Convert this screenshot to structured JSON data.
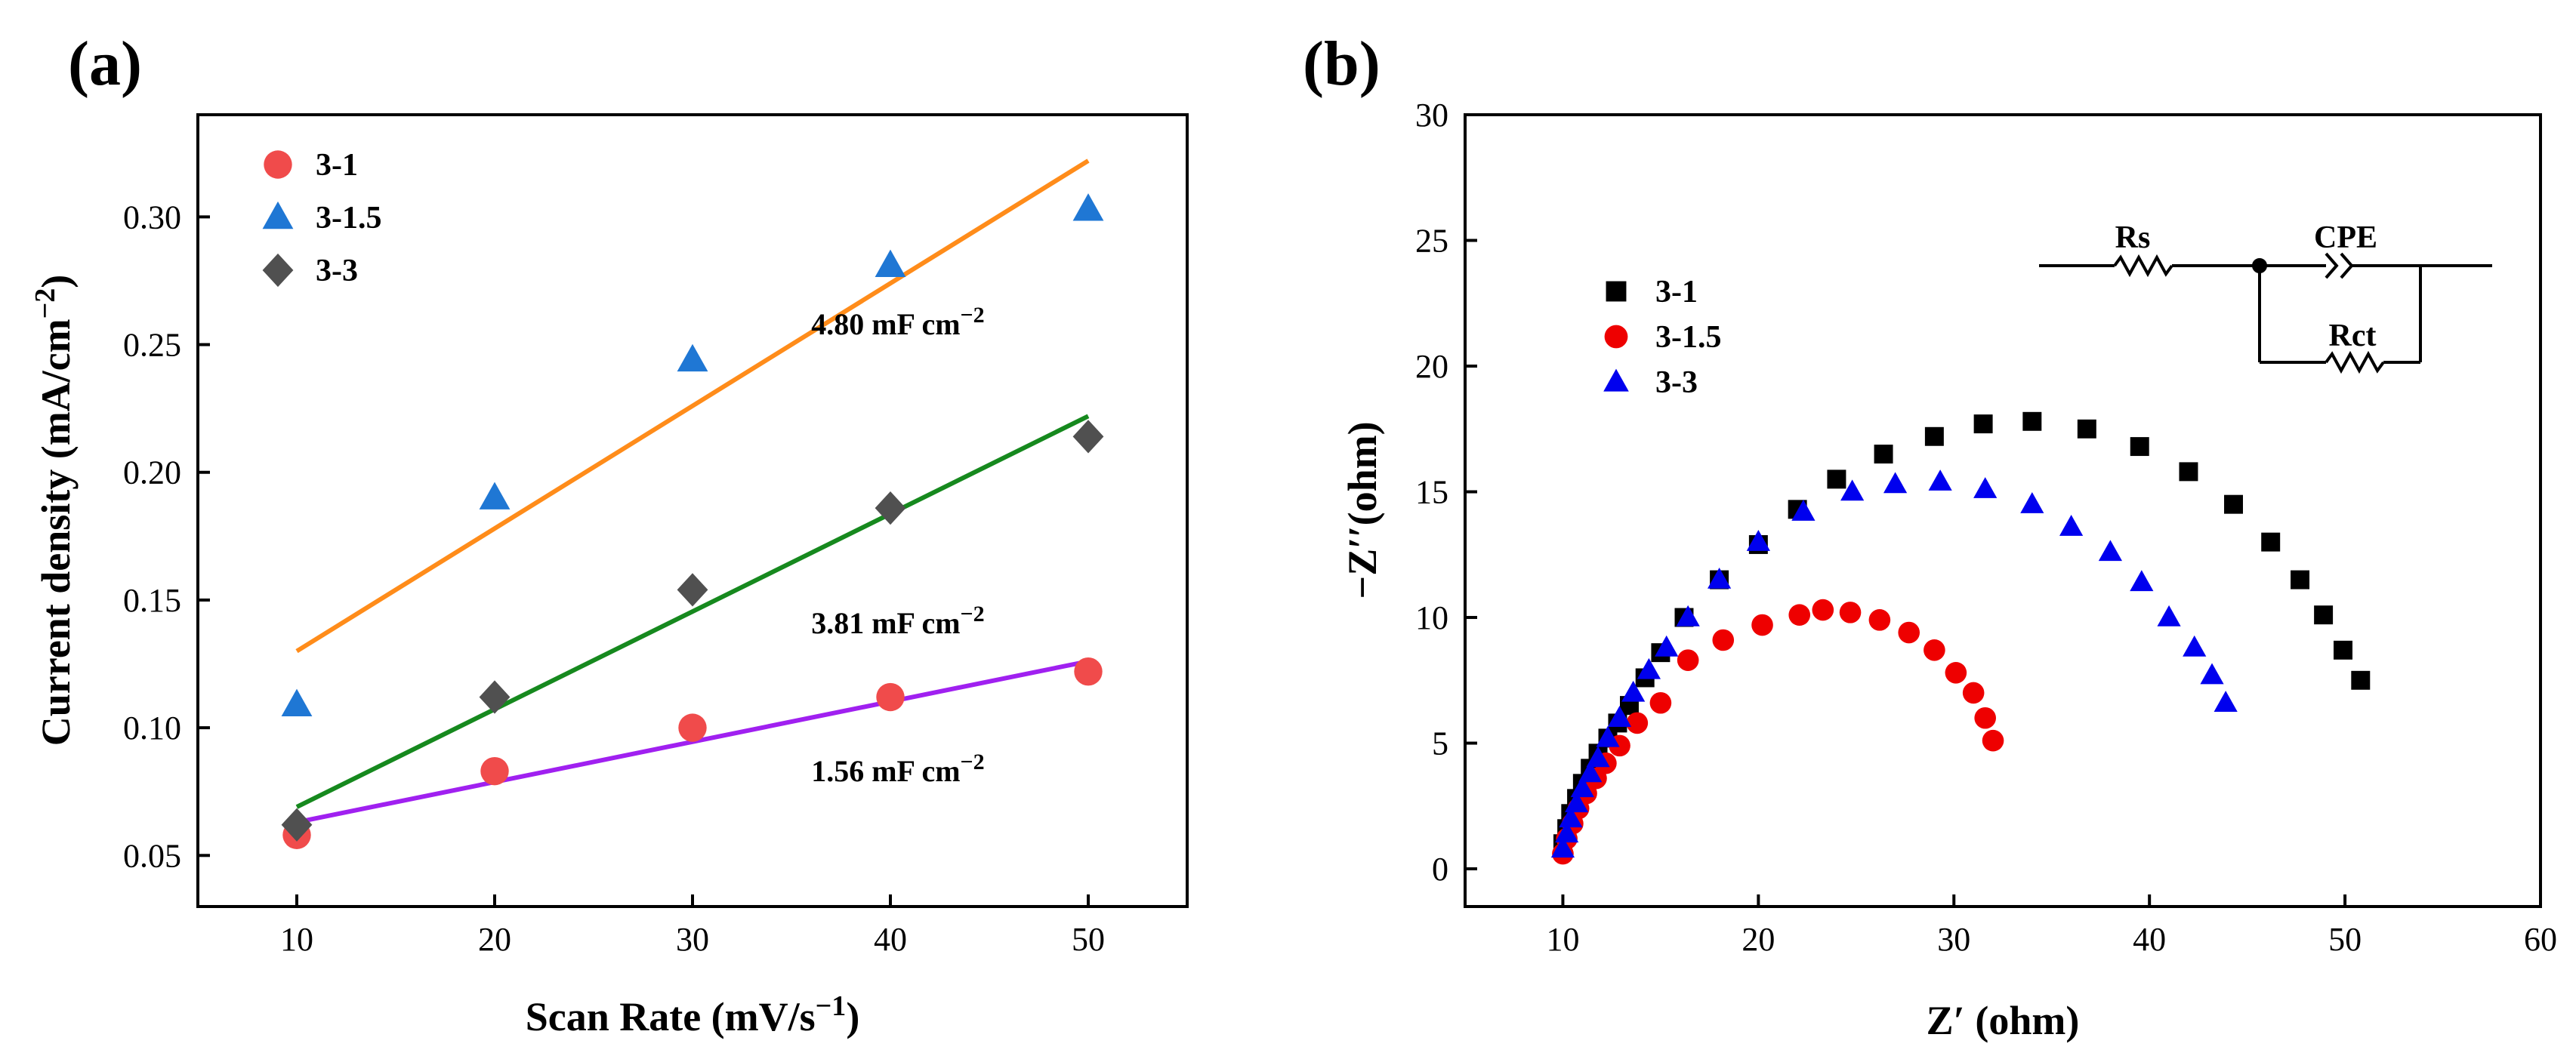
{
  "panel_labels": {
    "a": "(a)",
    "b": "(b)"
  },
  "colors": {
    "red": "#f04b4b",
    "blue": "#1f77d4",
    "gray": "#505050",
    "orange": "#ff8c1a",
    "green": "#16891e",
    "purple": "#a020f0",
    "black": "#000000",
    "pure_red": "#ee0000",
    "pure_blue": "#0000ee"
  },
  "chart_data": [
    {
      "type": "scatter",
      "panel": "(a)",
      "xlabel": "Scan Rate (mV/s",
      "xlabel_sup": "−1",
      "xlabel_end": ")",
      "ylabel": "Current density  (mA/cm",
      "ylabel_sup": "−2",
      "ylabel_end": ")",
      "xlim": [
        5,
        55
      ],
      "ylim": [
        0.03,
        0.34
      ],
      "xticks": [
        10,
        20,
        30,
        40,
        50
      ],
      "yticks": [
        0.05,
        0.1,
        0.15,
        0.2,
        0.25,
        0.3
      ],
      "ytick_labels": [
        "0.05",
        "0.10",
        "0.15",
        "0.20",
        "0.25",
        "0.30"
      ],
      "legend_position": "top-left",
      "series": [
        {
          "name": "3-1",
          "marker": "circle",
          "color": "#f04b4b",
          "x": [
            10,
            20,
            30,
            40,
            50
          ],
          "y": [
            0.058,
            0.083,
            0.1,
            0.112,
            0.122
          ]
        },
        {
          "name": "3-1.5",
          "marker": "triangle",
          "color": "#1f77d4",
          "x": [
            10,
            20,
            30,
            40,
            50
          ],
          "y": [
            0.109,
            0.19,
            0.244,
            0.281,
            0.303
          ]
        },
        {
          "name": "3-3",
          "marker": "diamond",
          "color": "#505050",
          "x": [
            10,
            20,
            30,
            40,
            50
          ],
          "y": [
            0.062,
            0.112,
            0.154,
            0.186,
            0.214
          ]
        }
      ],
      "fits": [
        {
          "label": "4.80 mF cm",
          "sup": "−2",
          "color": "#ff8c1a",
          "x": [
            10,
            50
          ],
          "y": [
            0.13,
            0.322
          ],
          "label_at": [
            36,
            0.254
          ]
        },
        {
          "label": "3.81 mF cm",
          "sup": "−2",
          "color": "#16891e",
          "x": [
            10,
            50
          ],
          "y": [
            0.069,
            0.222
          ],
          "label_at": [
            36,
            0.137
          ]
        },
        {
          "label": "1.56 mF cm",
          "sup": "−2",
          "color": "#a020f0",
          "x": [
            10,
            50
          ],
          "y": [
            0.063,
            0.126
          ],
          "label_at": [
            36,
            0.079
          ]
        }
      ]
    },
    {
      "type": "scatter",
      "panel": "(b)",
      "xlabel": "Z′ (ohm)",
      "ylabel": "−Z′′(ohm)",
      "xlim": [
        5,
        60
      ],
      "ylim": [
        -1.5,
        30
      ],
      "xticks": [
        10,
        20,
        30,
        40,
        50,
        60
      ],
      "yticks": [
        0,
        5,
        10,
        15,
        20,
        25,
        30
      ],
      "legend_position": "top-left",
      "series": [
        {
          "name": "3-1",
          "marker": "square",
          "color": "#000000",
          "x": [
            10.0,
            10.2,
            10.4,
            10.7,
            11.0,
            11.4,
            11.8,
            12.3,
            12.8,
            13.4,
            14.2,
            15.0,
            16.2,
            18.0,
            20.0,
            22.0,
            24.0,
            26.4,
            29.0,
            31.5,
            34.0,
            36.8,
            39.5,
            42.0,
            44.3,
            46.2,
            47.7,
            48.9,
            49.9,
            50.8
          ],
          "y": [
            1.0,
            1.6,
            2.2,
            2.8,
            3.4,
            4.0,
            4.6,
            5.2,
            5.8,
            6.5,
            7.6,
            8.6,
            10.0,
            11.5,
            12.9,
            14.3,
            15.5,
            16.5,
            17.2,
            17.7,
            17.8,
            17.5,
            16.8,
            15.8,
            14.5,
            13.0,
            11.5,
            10.1,
            8.7,
            7.5
          ]
        },
        {
          "name": "3-1.5",
          "marker": "circle",
          "color": "#ee0000",
          "x": [
            10.0,
            10.2,
            10.5,
            10.8,
            11.2,
            11.7,
            12.2,
            12.9,
            13.8,
            15.0,
            16.4,
            18.2,
            20.2,
            22.1,
            23.3,
            24.7,
            26.2,
            27.7,
            29.0,
            30.1,
            31.0,
            31.6,
            32.0
          ],
          "y": [
            0.6,
            1.2,
            1.8,
            2.4,
            3.0,
            3.6,
            4.2,
            4.9,
            5.8,
            6.6,
            8.3,
            9.1,
            9.7,
            10.1,
            10.3,
            10.2,
            9.9,
            9.4,
            8.7,
            7.8,
            7.0,
            6.0,
            5.1
          ]
        },
        {
          "name": "3-3",
          "marker": "triangle",
          "color": "#0000ee",
          "x": [
            10.0,
            10.2,
            10.4,
            10.7,
            11.0,
            11.4,
            11.8,
            12.3,
            12.9,
            13.6,
            14.4,
            15.3,
            16.4,
            18.0,
            20.0,
            22.3,
            24.8,
            27.0,
            29.3,
            31.6,
            34.0,
            36.0,
            38.0,
            39.6,
            41.0,
            42.3,
            43.2,
            43.9
          ],
          "y": [
            0.8,
            1.4,
            2.0,
            2.6,
            3.2,
            3.8,
            4.4,
            5.2,
            6.0,
            7.0,
            7.9,
            8.8,
            10.0,
            11.5,
            13.0,
            14.2,
            15.0,
            15.3,
            15.4,
            15.1,
            14.5,
            13.6,
            12.6,
            11.4,
            10.0,
            8.8,
            7.7,
            6.6
          ]
        }
      ],
      "circuit": {
        "rs": "Rs",
        "cpe": "CPE",
        "rct": "Rct"
      }
    }
  ]
}
